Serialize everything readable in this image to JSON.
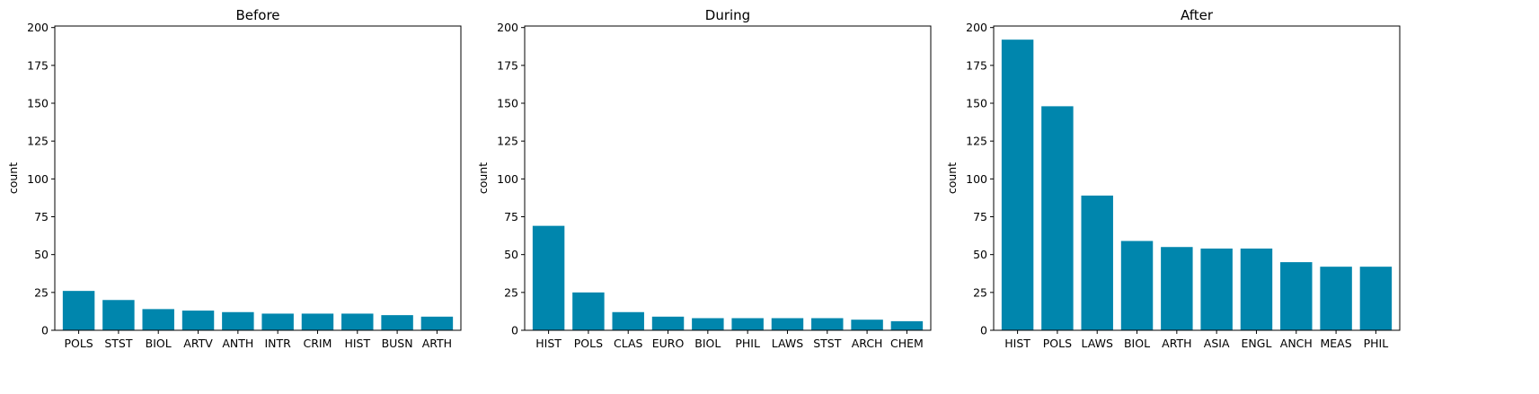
{
  "chart_data": [
    {
      "type": "bar",
      "title": "Before",
      "ylabel": "count",
      "ylim": [
        0,
        201
      ],
      "yticks": [
        0,
        25,
        50,
        75,
        100,
        125,
        150,
        175,
        200
      ],
      "categories": [
        "POLS",
        "STST",
        "BIOL",
        "ARTV",
        "ANTH",
        "INTR",
        "CRIM",
        "HIST",
        "BUSN",
        "ARTH"
      ],
      "values": [
        26,
        20,
        14,
        13,
        12,
        11,
        11,
        11,
        10,
        9
      ],
      "color": "#0086ad"
    },
    {
      "type": "bar",
      "title": "During",
      "ylabel": "count",
      "ylim": [
        0,
        201
      ],
      "yticks": [
        0,
        25,
        50,
        75,
        100,
        125,
        150,
        175,
        200
      ],
      "categories": [
        "HIST",
        "POLS",
        "CLAS",
        "EURO",
        "BIOL",
        "PHIL",
        "LAWS",
        "STST",
        "ARCH",
        "CHEM"
      ],
      "values": [
        69,
        25,
        12,
        9,
        8,
        8,
        8,
        8,
        7,
        6
      ],
      "color": "#0086ad"
    },
    {
      "type": "bar",
      "title": "After",
      "ylabel": "count",
      "ylim": [
        0,
        201
      ],
      "yticks": [
        0,
        25,
        50,
        75,
        100,
        125,
        150,
        175,
        200
      ],
      "categories": [
        "HIST",
        "POLS",
        "LAWS",
        "BIOL",
        "ARTH",
        "ASIA",
        "ENGL",
        "ANCH",
        "MEAS",
        "PHIL"
      ],
      "values": [
        192,
        148,
        89,
        59,
        55,
        54,
        54,
        45,
        42,
        42
      ],
      "color": "#0086ad"
    }
  ]
}
